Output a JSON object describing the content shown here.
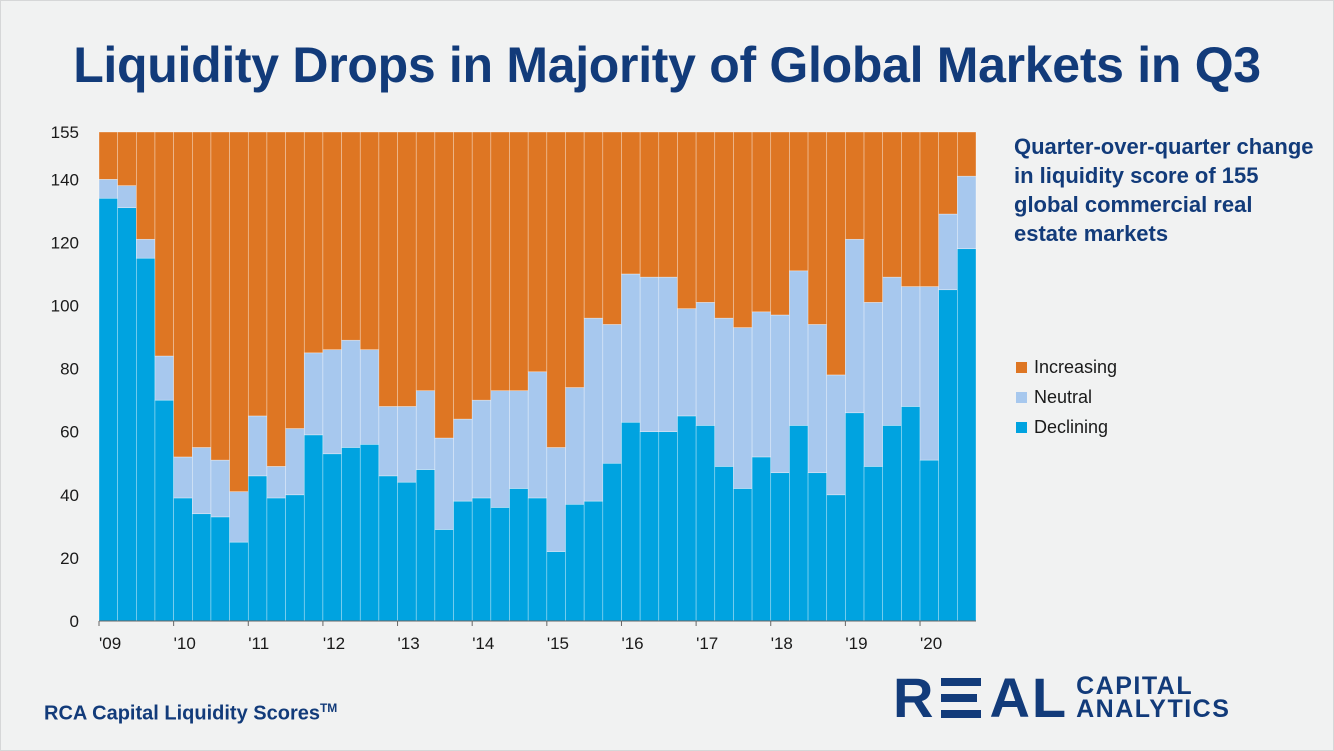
{
  "title": "Liquidity Drops in Majority of Global Markets in Q3",
  "description": "Quarter-over-quarter change in liquidity score of 155 global commercial real estate markets",
  "footer": {
    "source": "RCA Capital Liquidity Scores",
    "trademark": "TM",
    "logo_word": [
      "R",
      "E",
      "A",
      "L"
    ],
    "logo_sub_line1": "CAPITAL",
    "logo_sub_line2": "ANALYTICS"
  },
  "colors": {
    "title": "#123b7a",
    "declining": "#00a3e0",
    "neutral": "#a7c8ee",
    "increasing": "#de7623",
    "background": "#f1f2f2"
  },
  "chart_data": {
    "type": "bar",
    "stacked": true,
    "title": "Liquidity Drops in Majority of Global Markets in Q3",
    "xlabel": "",
    "ylabel": "",
    "ylim": [
      0,
      155
    ],
    "y_ticks": [
      0,
      20,
      40,
      60,
      80,
      100,
      120,
      140,
      155
    ],
    "x_tick_labels": [
      "'09",
      "'10",
      "'11",
      "'12",
      "'13",
      "'14",
      "'15",
      "'16",
      "'17",
      "'18",
      "'19",
      "'20"
    ],
    "categories": [
      "2009 Q1",
      "2009 Q2",
      "2009 Q3",
      "2009 Q4",
      "2010 Q1",
      "2010 Q2",
      "2010 Q3",
      "2010 Q4",
      "2011 Q1",
      "2011 Q2",
      "2011 Q3",
      "2011 Q4",
      "2012 Q1",
      "2012 Q2",
      "2012 Q3",
      "2012 Q4",
      "2013 Q1",
      "2013 Q2",
      "2013 Q3",
      "2013 Q4",
      "2014 Q1",
      "2014 Q2",
      "2014 Q3",
      "2014 Q4",
      "2015 Q1",
      "2015 Q2",
      "2015 Q3",
      "2015 Q4",
      "2016 Q1",
      "2016 Q2",
      "2016 Q3",
      "2016 Q4",
      "2017 Q1",
      "2017 Q2",
      "2017 Q3",
      "2017 Q4",
      "2018 Q1",
      "2018 Q2",
      "2018 Q3",
      "2018 Q4",
      "2019 Q1",
      "2019 Q2",
      "2019 Q3",
      "2019 Q4",
      "2020 Q1",
      "2020 Q2",
      "2020 Q3"
    ],
    "series": [
      {
        "name": "Declining",
        "color": "#00a3e0",
        "values": [
          134,
          131,
          115,
          70,
          39,
          34,
          33,
          25,
          46,
          39,
          40,
          59,
          53,
          55,
          56,
          46,
          44,
          48,
          29,
          38,
          39,
          36,
          42,
          39,
          22,
          37,
          38,
          50,
          63,
          60,
          60,
          65,
          62,
          49,
          42,
          52,
          47,
          62,
          47,
          40,
          66,
          49,
          62,
          68,
          51,
          105,
          118
        ]
      },
      {
        "name": "Neutral",
        "color": "#a7c8ee",
        "values": [
          6,
          7,
          6,
          14,
          13,
          21,
          18,
          16,
          19,
          10,
          21,
          26,
          33,
          34,
          30,
          22,
          24,
          25,
          29,
          26,
          31,
          37,
          31,
          40,
          33,
          37,
          58,
          44,
          47,
          49,
          49,
          34,
          39,
          47,
          51,
          46,
          50,
          49,
          47,
          38,
          55,
          52,
          47,
          38,
          55,
          24,
          23
        ]
      },
      {
        "name": "Increasing",
        "color": "#de7623",
        "values": [
          15,
          17,
          34,
          71,
          103,
          100,
          104,
          114,
          90,
          106,
          94,
          70,
          69,
          66,
          69,
          87,
          87,
          82,
          97,
          91,
          85,
          82,
          82,
          76,
          100,
          81,
          59,
          61,
          45,
          46,
          46,
          56,
          54,
          59,
          62,
          57,
          58,
          44,
          61,
          77,
          34,
          54,
          46,
          49,
          49,
          26,
          14
        ]
      }
    ],
    "legend": {
      "placement": "right",
      "order": [
        "Increasing",
        "Neutral",
        "Declining"
      ]
    },
    "grid": false
  }
}
